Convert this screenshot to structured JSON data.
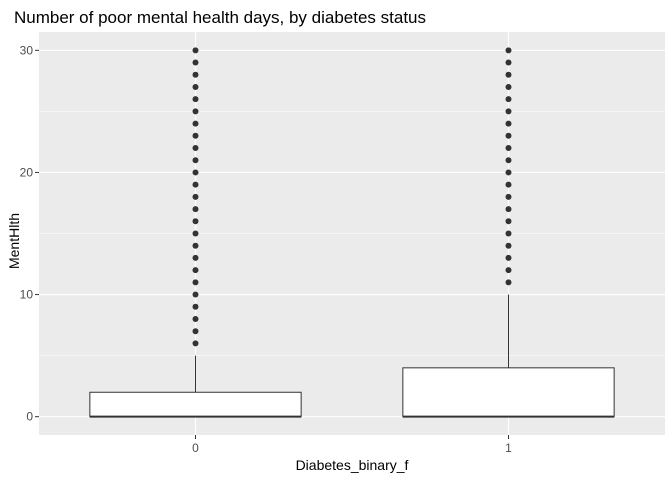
{
  "chart_data": {
    "type": "boxplot",
    "title": "Number of poor mental health days, by diabetes status",
    "xlabel": "Diabetes_binary_f",
    "ylabel": "MentHlth",
    "categories": [
      "0",
      "1"
    ],
    "y_ticks": [
      0,
      10,
      20,
      30
    ],
    "ylim": [
      -1.5,
      31.5
    ],
    "grid": true,
    "boxes": [
      {
        "category": "0",
        "min": 0,
        "q1": 0,
        "median": 0,
        "q3": 2,
        "whisker_high": 5,
        "outliers": [
          6,
          7,
          8,
          9,
          10,
          11,
          12,
          13,
          14,
          15,
          16,
          17,
          18,
          19,
          20,
          21,
          22,
          23,
          24,
          25,
          26,
          27,
          28,
          29,
          30
        ]
      },
      {
        "category": "1",
        "min": 0,
        "q1": 0,
        "median": 0,
        "q3": 4,
        "whisker_high": 10,
        "outliers": [
          11,
          12,
          13,
          14,
          15,
          16,
          17,
          18,
          19,
          20,
          21,
          22,
          23,
          24,
          25,
          26,
          27,
          28,
          29,
          30
        ]
      }
    ],
    "colors": {
      "panel": "#ebebeb",
      "grid": "#ffffff",
      "box_fill": "#ffffff",
      "box_line": "#333333",
      "outlier": "#333333"
    }
  }
}
